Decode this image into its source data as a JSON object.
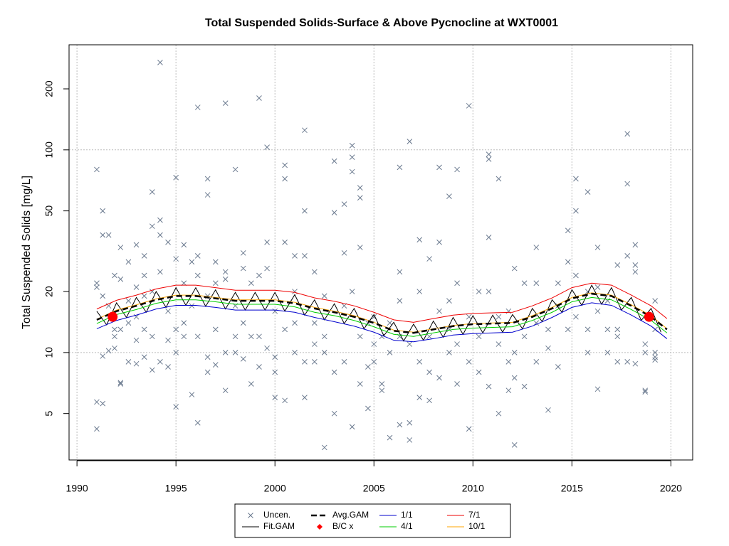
{
  "chart_data": {
    "type": "line",
    "title": "Total Suspended Solids-Surface & Above Pycnocline at WXT0001",
    "y_label": "Total Suspended Solids [mg/L]",
    "xlim": [
      1989.6,
      2021.1
    ],
    "ylim": [
      2.95,
      330
    ],
    "ylog": true,
    "grid": true,
    "xticks": [
      1990,
      1995,
      2000,
      2005,
      2010,
      2015,
      2020
    ],
    "yticks": [
      5,
      10,
      20,
      50,
      100,
      200
    ],
    "legend": "bottom",
    "series": [
      {
        "name": "Uncen.",
        "color": "#6b7a8f",
        "style": "cross",
        "x": [
          1991.0,
          1991.0,
          1991.0,
          1991.0,
          1991.0,
          1991.3,
          1991.3,
          1991.3,
          1991.3,
          1991.3,
          1991.6,
          1991.6,
          1991.6,
          1991.9,
          1991.9,
          1991.9,
          1991.9,
          1992.2,
          1992.2,
          1992.2,
          1992.2,
          1992.2,
          1992.6,
          1992.6,
          1992.6,
          1992.6,
          1993.0,
          1993.0,
          1993.0,
          1993.0,
          1993.0,
          1993.4,
          1993.4,
          1993.4,
          1993.4,
          1993.4,
          1993.8,
          1993.8,
          1993.8,
          1993.8,
          1993.8,
          1994.2,
          1994.2,
          1994.2,
          1994.2,
          1994.2,
          1994.6,
          1994.6,
          1994.6,
          1994.6,
          1995.0,
          1995.0,
          1995.0,
          1995.0,
          1995.0,
          1995.4,
          1995.4,
          1995.4,
          1995.4,
          1995.8,
          1995.8,
          1995.8,
          1996.1,
          1996.1,
          1996.1,
          1996.1,
          1996.1,
          1996.6,
          1996.6,
          1996.6,
          1996.6,
          1996.6,
          1997.0,
          1997.0,
          1997.0,
          1997.0,
          1997.5,
          1997.5,
          1997.5,
          1997.5,
          1997.5,
          1998.0,
          1998.0,
          1998.0,
          1998.0,
          1998.4,
          1998.4,
          1998.4,
          1998.4,
          1998.8,
          1998.8,
          1998.8,
          1999.2,
          1999.2,
          1999.2,
          1999.2,
          1999.6,
          1999.6,
          1999.6,
          1999.6,
          2000.0,
          2000.0,
          2000.0,
          2000.0,
          2000.5,
          2000.5,
          2000.5,
          2000.5,
          2000.5,
          2001.0,
          2001.0,
          2001.0,
          2001.0,
          2001.5,
          2001.5,
          2001.5,
          2001.5,
          2001.5,
          2002.0,
          2002.0,
          2002.0,
          2002.0,
          2002.5,
          2002.5,
          2002.5,
          2002.5,
          2003.0,
          2003.0,
          2003.0,
          2003.0,
          2003.5,
          2003.5,
          2003.5,
          2003.5,
          2003.9,
          2003.9,
          2003.9,
          2003.9,
          2003.9,
          2004.3,
          2004.3,
          2004.3,
          2004.3,
          2004.3,
          2004.7,
          2004.7,
          2004.7,
          2005.0,
          2005.0,
          2005.0,
          2005.4,
          2005.4,
          2005.4,
          2005.8,
          2005.8,
          2005.8,
          2006.3,
          2006.3,
          2006.3,
          2006.3,
          2006.3,
          2006.8,
          2006.8,
          2006.8,
          2006.8,
          2007.3,
          2007.3,
          2007.3,
          2007.3,
          2007.8,
          2007.8,
          2007.8,
          2007.8,
          2008.3,
          2008.3,
          2008.3,
          2008.3,
          2008.8,
          2008.8,
          2008.8,
          2008.8,
          2009.2,
          2009.2,
          2009.2,
          2009.2,
          2009.8,
          2009.8,
          2009.8,
          2009.8,
          2010.3,
          2010.3,
          2010.3,
          2010.8,
          2010.8,
          2010.8,
          2010.8,
          2010.8,
          2011.3,
          2011.3,
          2011.3,
          2011.3,
          2011.8,
          2011.8,
          2011.8,
          2012.1,
          2012.1,
          2012.1,
          2012.1,
          2012.6,
          2012.6,
          2012.6,
          2013.2,
          2013.2,
          2013.2,
          2013.2,
          2013.8,
          2013.8,
          2013.8,
          2014.3,
          2014.3,
          2014.3,
          2014.8,
          2014.8,
          2014.8,
          2015.2,
          2015.2,
          2015.2,
          2015.2,
          2015.8,
          2015.8,
          2015.8,
          2015.8,
          2016.3,
          2016.3,
          2016.3,
          2016.3,
          2016.8,
          2016.8,
          2016.8,
          2017.3,
          2017.3,
          2017.3,
          2017.3,
          2017.8,
          2017.8,
          2017.8,
          2017.8,
          2018.2,
          2018.2,
          2018.2,
          2018.2,
          2018.7,
          2018.7,
          2018.7,
          2018.7,
          2019.2,
          2019.2,
          2019.2,
          2019.2,
          2019.2
        ],
        "values": [
          22,
          21,
          5.7,
          4.2,
          80,
          50,
          38,
          9.6,
          5.6,
          19,
          38,
          17,
          10.2,
          13,
          12,
          10.5,
          24,
          7,
          7.1,
          33,
          23,
          13,
          28,
          18,
          9,
          14,
          21,
          15,
          11.5,
          34,
          8.8,
          30,
          24,
          13,
          19,
          9.5,
          42,
          62,
          12,
          20,
          8.2,
          270,
          38,
          45,
          25,
          9,
          35,
          16,
          11.5,
          8.5,
          73,
          29,
          13,
          5.4,
          10,
          34,
          22,
          14,
          12,
          6.2,
          28,
          17,
          4.5,
          162,
          24,
          12,
          30,
          72,
          60,
          19,
          9.5,
          8,
          22,
          13,
          8.7,
          28,
          170,
          23,
          25,
          10,
          6.5,
          80,
          12,
          10,
          17,
          31,
          26,
          9.3,
          14,
          22,
          12,
          7,
          180,
          24,
          12,
          8.5,
          103,
          26,
          10.5,
          35,
          6,
          16,
          9.5,
          8,
          84,
          72,
          35,
          5.8,
          13,
          30,
          20,
          10,
          14,
          50,
          125,
          30,
          6,
          9,
          25,
          14,
          11,
          9,
          3.4,
          19,
          10,
          12,
          88,
          49,
          8,
          5,
          54,
          31,
          17,
          9,
          105,
          92,
          78,
          4.3,
          20,
          65,
          58,
          33,
          12,
          7,
          14,
          8.5,
          5.3,
          11,
          9,
          15,
          7,
          6.5,
          12,
          3.8,
          10,
          14,
          82,
          25,
          18,
          12,
          4.4,
          110,
          4.5,
          3.7,
          11,
          36,
          20,
          9,
          6,
          12,
          8,
          5.8,
          29,
          82,
          35,
          16,
          7.5,
          59,
          18,
          10,
          13,
          80,
          22,
          11,
          7,
          165,
          4.2,
          15,
          9,
          20,
          8,
          12,
          90,
          95,
          37,
          20,
          6.8,
          72,
          15,
          11,
          5,
          9,
          6.5,
          16,
          3.5,
          26,
          10,
          7.5,
          22,
          12,
          6.8,
          33,
          22,
          14,
          9,
          13,
          10.5,
          5.2,
          22,
          17,
          8.5,
          40,
          28,
          13,
          72,
          50,
          24,
          15,
          62,
          20,
          13,
          10,
          33,
          21,
          16,
          6.6,
          18,
          13,
          10,
          13,
          27,
          12,
          9,
          68,
          120,
          30,
          9,
          34,
          27,
          25,
          8.8,
          11,
          10,
          6.4,
          6.5,
          10,
          18,
          13,
          9.5,
          9.2
        ]
      },
      {
        "name": "Fit.GAM",
        "color": "#000000",
        "style": "line",
        "x": [
          1991,
          1991.5,
          1992,
          1992.5,
          1993,
          1993.5,
          1994,
          1994.5,
          1995,
          1995.5,
          1996,
          1996.5,
          1997,
          1997.5,
          1998,
          1998.5,
          1999,
          1999.5,
          2000,
          2000.5,
          2001,
          2001.5,
          2002,
          2002.5,
          2003,
          2003.5,
          2004,
          2004.5,
          2005,
          2005.5,
          2006,
          2006.5,
          2007,
          2007.5,
          2008,
          2008.5,
          2009,
          2009.5,
          2010,
          2010.5,
          2011,
          2011.5,
          2012,
          2012.5,
          2013,
          2013.5,
          2014,
          2014.5,
          2015,
          2015.5,
          2016,
          2016.5,
          2017,
          2017.5,
          2018,
          2018.5,
          2019,
          2019.5
        ],
        "values": [
          16.0,
          13.7,
          17.6,
          14.9,
          18.7,
          15.8,
          20.0,
          16.7,
          20.9,
          17.1,
          20.9,
          16.9,
          20.4,
          16.4,
          19.8,
          16.2,
          19.8,
          16.2,
          19.8,
          16.0,
          19.3,
          15.3,
          18.2,
          14.5,
          17.4,
          13.9,
          16.5,
          13.1,
          15.4,
          12.1,
          14.1,
          11.4,
          13.8,
          11.5,
          14.3,
          11.9,
          14.9,
          12.3,
          15.2,
          12.5,
          15.3,
          12.6,
          15.4,
          13.1,
          16.5,
          14.2,
          18.2,
          15.8,
          20.4,
          17.1,
          21.5,
          17.3,
          20.9,
          16.2,
          18.7,
          14.4,
          16.5,
          12.6
        ]
      },
      {
        "name": "Avg.GAM",
        "color": "#000000",
        "style": "dashed",
        "x": [
          1991,
          1992,
          1993,
          1994,
          1995,
          1996,
          1997,
          1998,
          1999,
          2000,
          2001,
          2002,
          2003,
          2004,
          2005,
          2006,
          2007,
          2008,
          2009,
          2010,
          2011,
          2012,
          2013,
          2014,
          2015,
          2016,
          2017,
          2018,
          2019,
          2019.8
        ],
        "values": [
          14.5,
          16,
          17,
          18.2,
          19,
          19,
          18.5,
          18,
          18,
          18,
          17.5,
          16.5,
          15.8,
          15,
          14,
          12.8,
          12.5,
          13,
          13.5,
          13.8,
          13.9,
          14,
          15,
          16.5,
          18.5,
          19.5,
          19,
          17,
          15,
          13
        ]
      },
      {
        "name": "B/C x",
        "color": "#ff0000",
        "style": "dot",
        "x": [
          1991.8,
          2018.9
        ],
        "values": [
          15,
          15
        ]
      },
      {
        "name": "1/1",
        "color": "#0000cd",
        "style": "line",
        "x": [
          1991,
          1992,
          1993,
          1994,
          1995,
          1996,
          1997,
          1998,
          1999,
          2000,
          2001,
          2002,
          2003,
          2004,
          2005,
          2006,
          2007,
          2008,
          2009,
          2010,
          2011,
          2012,
          2013,
          2014,
          2015,
          2016,
          2017,
          2018,
          2019,
          2019.8
        ],
        "values": [
          13.1,
          14.4,
          15.3,
          16.4,
          17.1,
          17.1,
          16.7,
          16.2,
          16.2,
          16.2,
          15.8,
          14.9,
          14.2,
          13.5,
          12.6,
          11.5,
          11.3,
          11.7,
          12.2,
          12.4,
          12.5,
          12.6,
          13.5,
          14.9,
          16.7,
          17.6,
          17.1,
          15.3,
          13.5,
          11.7
        ]
      },
      {
        "name": "4/1",
        "color": "#00cd00",
        "style": "line",
        "x": [
          1991,
          1992,
          1993,
          1994,
          1995,
          1996,
          1997,
          1998,
          1999,
          2000,
          2001,
          2002,
          2003,
          2004,
          2005,
          2006,
          2007,
          2008,
          2009,
          2010,
          2011,
          2012,
          2013,
          2014,
          2015,
          2016,
          2017,
          2018,
          2019,
          2019.8
        ],
        "values": [
          13.9,
          15.4,
          16.3,
          17.5,
          18.2,
          18.2,
          17.8,
          17.3,
          17.3,
          17.3,
          16.8,
          15.8,
          15.2,
          14.4,
          13.4,
          12.3,
          12,
          12.5,
          13,
          13.2,
          13.3,
          13.4,
          14.4,
          15.8,
          17.8,
          18.7,
          18.2,
          16.3,
          14.4,
          12.5
        ]
      },
      {
        "name": "7/1",
        "color": "#ee0000",
        "style": "line",
        "x": [
          1991,
          1992,
          1993,
          1994,
          1995,
          1996,
          1997,
          1998,
          1999,
          2000,
          2001,
          2002,
          2003,
          2004,
          2005,
          2006,
          2007,
          2008,
          2009,
          2010,
          2011,
          2012,
          2013,
          2014,
          2015,
          2016,
          2017,
          2018,
          2019,
          2019.8
        ],
        "values": [
          16.4,
          18.1,
          19.2,
          20.6,
          21.5,
          21.5,
          20.9,
          20.3,
          20.3,
          20.3,
          19.8,
          18.6,
          17.9,
          17,
          15.8,
          14.5,
          14.1,
          14.7,
          15.3,
          15.6,
          15.7,
          15.8,
          17,
          18.6,
          20.9,
          22,
          21.5,
          19.2,
          17,
          14.7
        ]
      },
      {
        "name": "10/1",
        "color": "#ffa500",
        "style": "line",
        "x": [
          1991,
          1992,
          1993,
          1994,
          1995,
          1996,
          1997,
          1998,
          1999,
          2000,
          2001,
          2002,
          2003,
          2004,
          2005,
          2006,
          2007,
          2008,
          2009,
          2010,
          2011,
          2012,
          2013,
          2014,
          2015,
          2016,
          2017,
          2018,
          2019,
          2019.8
        ],
        "values": [
          14.6,
          16.2,
          17.2,
          18.4,
          19.2,
          19.2,
          18.7,
          18.2,
          18.2,
          18.2,
          17.7,
          16.7,
          16,
          15.2,
          14.1,
          12.9,
          12.6,
          13.1,
          13.6,
          13.9,
          14,
          14.1,
          15.2,
          16.7,
          18.7,
          19.7,
          19.2,
          17.2,
          15.2,
          13.1
        ]
      }
    ]
  }
}
